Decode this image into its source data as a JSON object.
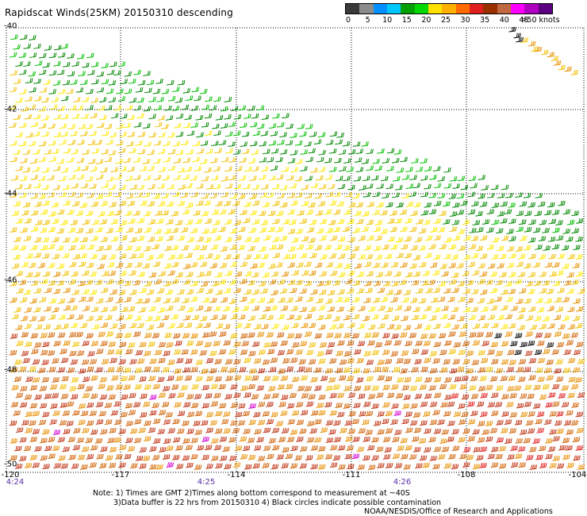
{
  "title": "Rapidscat Winds(25KM) 20150310 descending",
  "legend": {
    "labels": [
      "0",
      "5",
      "10",
      "15",
      "20",
      "25",
      "30",
      "35",
      "40",
      "45",
      ">50 knots"
    ],
    "colors": [
      "#3a3a3a",
      "#8c8c8c",
      "#0090ff",
      "#00c8ff",
      "#00a000",
      "#00d800",
      "#ffe000",
      "#ffb000",
      "#ff6a00",
      "#e02020",
      "#9a3000",
      "#c06840",
      "#ff00ff",
      "#b000c0",
      "#5a0080"
    ]
  },
  "map": {
    "lat_labels": [
      "-40",
      "-42",
      "-44",
      "-46",
      "-48",
      "-50"
    ],
    "lon_labels": [
      "-120",
      "-117",
      "-114",
      "-111",
      "-108",
      "-104"
    ],
    "time_labels": [
      "4:24",
      "4:25",
      "4:26"
    ],
    "wind_colors": {
      "green": "#008800",
      "light_green": "#00c000",
      "yellow": "#ffe800",
      "gold": "#f2c000",
      "orange": "#e89000",
      "dark_orange": "#d06000",
      "red_orange": "#c03010",
      "red": "#e01818",
      "magenta": "#d000d0",
      "black": "#000000"
    }
  },
  "notes": {
    "line1": "Note: 1) Times are GMT 2)Times along bottom correspond to measurement at ~40S",
    "line2": "3)Data buffer is 22 hrs from 20150310 4) Black circles indicate possible contamination",
    "credit": "NOAA/NESDIS/Office of Research and Applications"
  }
}
